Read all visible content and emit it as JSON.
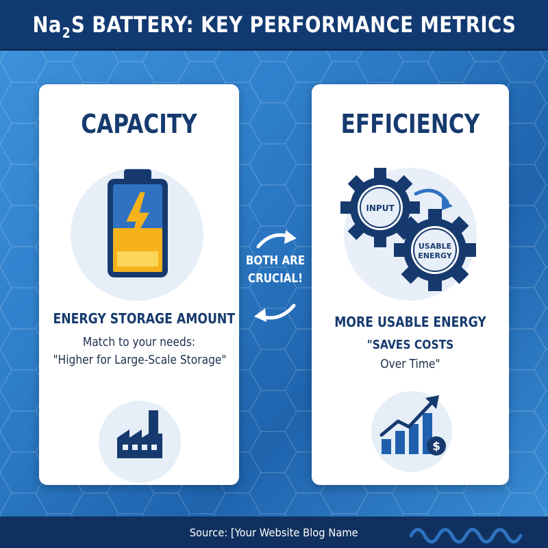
{
  "header": {
    "title_prefix": "Na",
    "title_subscript": "2",
    "title_suffix": "S BATTERY: KEY PERFORMANCE METRICS"
  },
  "capacity_card": {
    "title": "CAPACITY",
    "icon": "battery-icon",
    "heading": "ENERGY STORAGE AMOUNT",
    "line1": "Match to your needs:",
    "line2": "\"Higher for Large-Scale Storage\"",
    "bottom_icon": "factory-icon"
  },
  "middle": {
    "line1": "BOTH ARE",
    "line2": "CRUCIAL!"
  },
  "efficiency_card": {
    "title": "EFFICIENCY",
    "icon": "gears-icon",
    "gear_input_label": "INPUT",
    "gear_output_label_1": "USABLE",
    "gear_output_label_2": "ENERGY",
    "heading": "MORE USABLE ENERGY",
    "line1": "\"SAVES COSTS",
    "line2": "Over Time\"",
    "bottom_icon": "growth-chart-dollar-icon"
  },
  "footer": {
    "text": "Source: [Your Website Blog Name"
  },
  "colors": {
    "header_bg": "#123a72",
    "navy": "#163a6e",
    "battery_yellow": "#f6b21b",
    "battery_blue": "#2f72c2",
    "card_bg": "#ffffff"
  }
}
